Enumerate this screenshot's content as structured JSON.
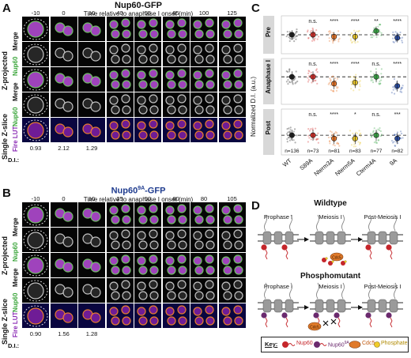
{
  "panelA": {
    "letter": "A",
    "title": "Nup60-GFP",
    "subtitle": "Time relative to anaphase I onset (min)",
    "times": [
      "-10",
      "0",
      "10",
      "40",
      "55",
      "65",
      "100",
      "125"
    ],
    "row_labels": {
      "zproj": "Z-projected",
      "single": "Single Z-slice",
      "merge": "Merge",
      "nup60": "Nup60",
      "fire": "Fire LUT"
    },
    "di_label": "D.I.:",
    "di_values": [
      "0.93",
      "2.12",
      "1.29"
    ]
  },
  "panelB": {
    "letter": "B",
    "title_pre": "Nup60",
    "title_sup": "9A",
    "title_post": "-GFP",
    "subtitle": "Time relative to anaphase I onset (min)",
    "times": [
      "-10",
      "0",
      "10",
      "25",
      "50",
      "60",
      "80",
      "105"
    ],
    "row_labels": {
      "zproj": "Z-projected",
      "single": "Single Z-slice",
      "merge": "Merge",
      "nup60": "Nup60",
      "fire": "Fire LUT"
    },
    "di_label": "D.I.:",
    "di_values": [
      "0.90",
      "1.56",
      "1.28"
    ]
  },
  "panelC": {
    "letter": "C",
    "ylabel": "Normalized D.I. (a.u.)",
    "facets": [
      "Pre",
      "Anaphase I",
      "Post"
    ],
    "categories": [
      "WT",
      "S89A",
      "Nterm3A",
      "Nterm5A",
      "Cterm4A",
      "9A"
    ],
    "n_labels": [
      "n=136",
      "n=73",
      "n=81",
      "n=83",
      "n=77",
      "n=82"
    ],
    "colors": [
      "#222222",
      "#d8322e",
      "#e8762a",
      "#e8c52a",
      "#3daa4a",
      "#2c4fa3"
    ],
    "significance": {
      "Pre": [
        "",
        "n.s.",
        "****",
        "****",
        "**",
        "****"
      ],
      "Anaphase I": [
        "",
        "n.s.",
        "****",
        "****",
        "n.s.",
        "****"
      ],
      "Post": [
        "",
        "n.s.",
        "****",
        "*",
        "n.s.",
        "***"
      ]
    }
  },
  "chart_data": {
    "type": "scatter",
    "ylabel": "Normalized D.I. (a.u.)",
    "categories": [
      "WT",
      "S89A",
      "Nterm3A",
      "Nterm5A",
      "Cterm4A",
      "9A"
    ],
    "series": [
      {
        "name": "Pre",
        "values": [
          1.0,
          1.0,
          0.95,
          0.95,
          1.1,
          0.92
        ]
      },
      {
        "name": "Anaphase I",
        "values": [
          2.0,
          2.0,
          1.7,
          1.75,
          2.0,
          1.6
        ]
      },
      {
        "name": "Post",
        "values": [
          1.4,
          1.4,
          1.3,
          1.3,
          1.4,
          1.3
        ]
      }
    ],
    "reference_line": "WT mean (dashed)"
  },
  "panelD": {
    "letter": "D",
    "wt_title": "Wildtype",
    "mut_title": "Phosphomutant",
    "stages": [
      "Prophase I",
      "Meiosis I",
      "Post-Meiosis I"
    ],
    "cdc5_label": "Cdc5",
    "key": {
      "label": "Key:",
      "nup60": "Nup60",
      "nup60_pre": "Nup60",
      "nup60_sup": "9A",
      "cdc5": "Cdc5",
      "phosphate": "Phosphate"
    }
  }
}
